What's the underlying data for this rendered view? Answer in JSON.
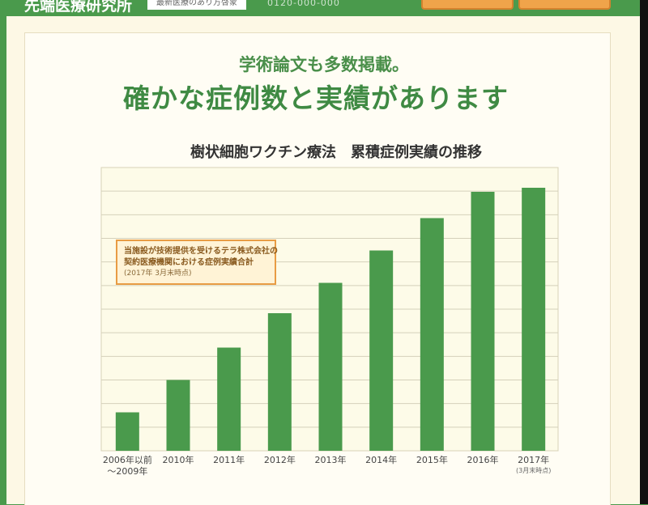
{
  "header": {
    "site_name": "先端医療研究所",
    "tagline": "最新医療のあり方啓蒙",
    "faint_text": "0120-000-000"
  },
  "section": {
    "subhead": "学術論文も多数掲載。",
    "headline": "確かな症例数と実績があります"
  },
  "note": {
    "line1": "当施設が技術提供を受けるテラ株式会社の",
    "line2": "契約医療機関における症例実績合計",
    "line3": "(2017年 3月末時点)"
  },
  "colors": {
    "bar": "#4a9a4c",
    "accent_green": "#3f8a43",
    "note_border": "#e89c44"
  },
  "chart_data": {
    "type": "bar",
    "title": "樹状細胞ワクチン療法　累積症例実績の推移",
    "categories": [
      "2006年以前\n〜2009年",
      "2010年",
      "2011年",
      "2012年",
      "2013年",
      "2014年",
      "2015年",
      "2016年",
      "2017年"
    ],
    "category_notes": [
      "",
      "",
      "",
      "",
      "",
      "",
      "",
      "",
      "(3月末時点)"
    ],
    "values": [
      1.9,
      3.5,
      5.1,
      6.8,
      8.3,
      9.9,
      11.5,
      12.8,
      13.0
    ],
    "ylim": [
      0,
      14
    ],
    "gridlines": 12,
    "xlabel": "",
    "ylabel": "",
    "grid": true,
    "legend": "none"
  }
}
